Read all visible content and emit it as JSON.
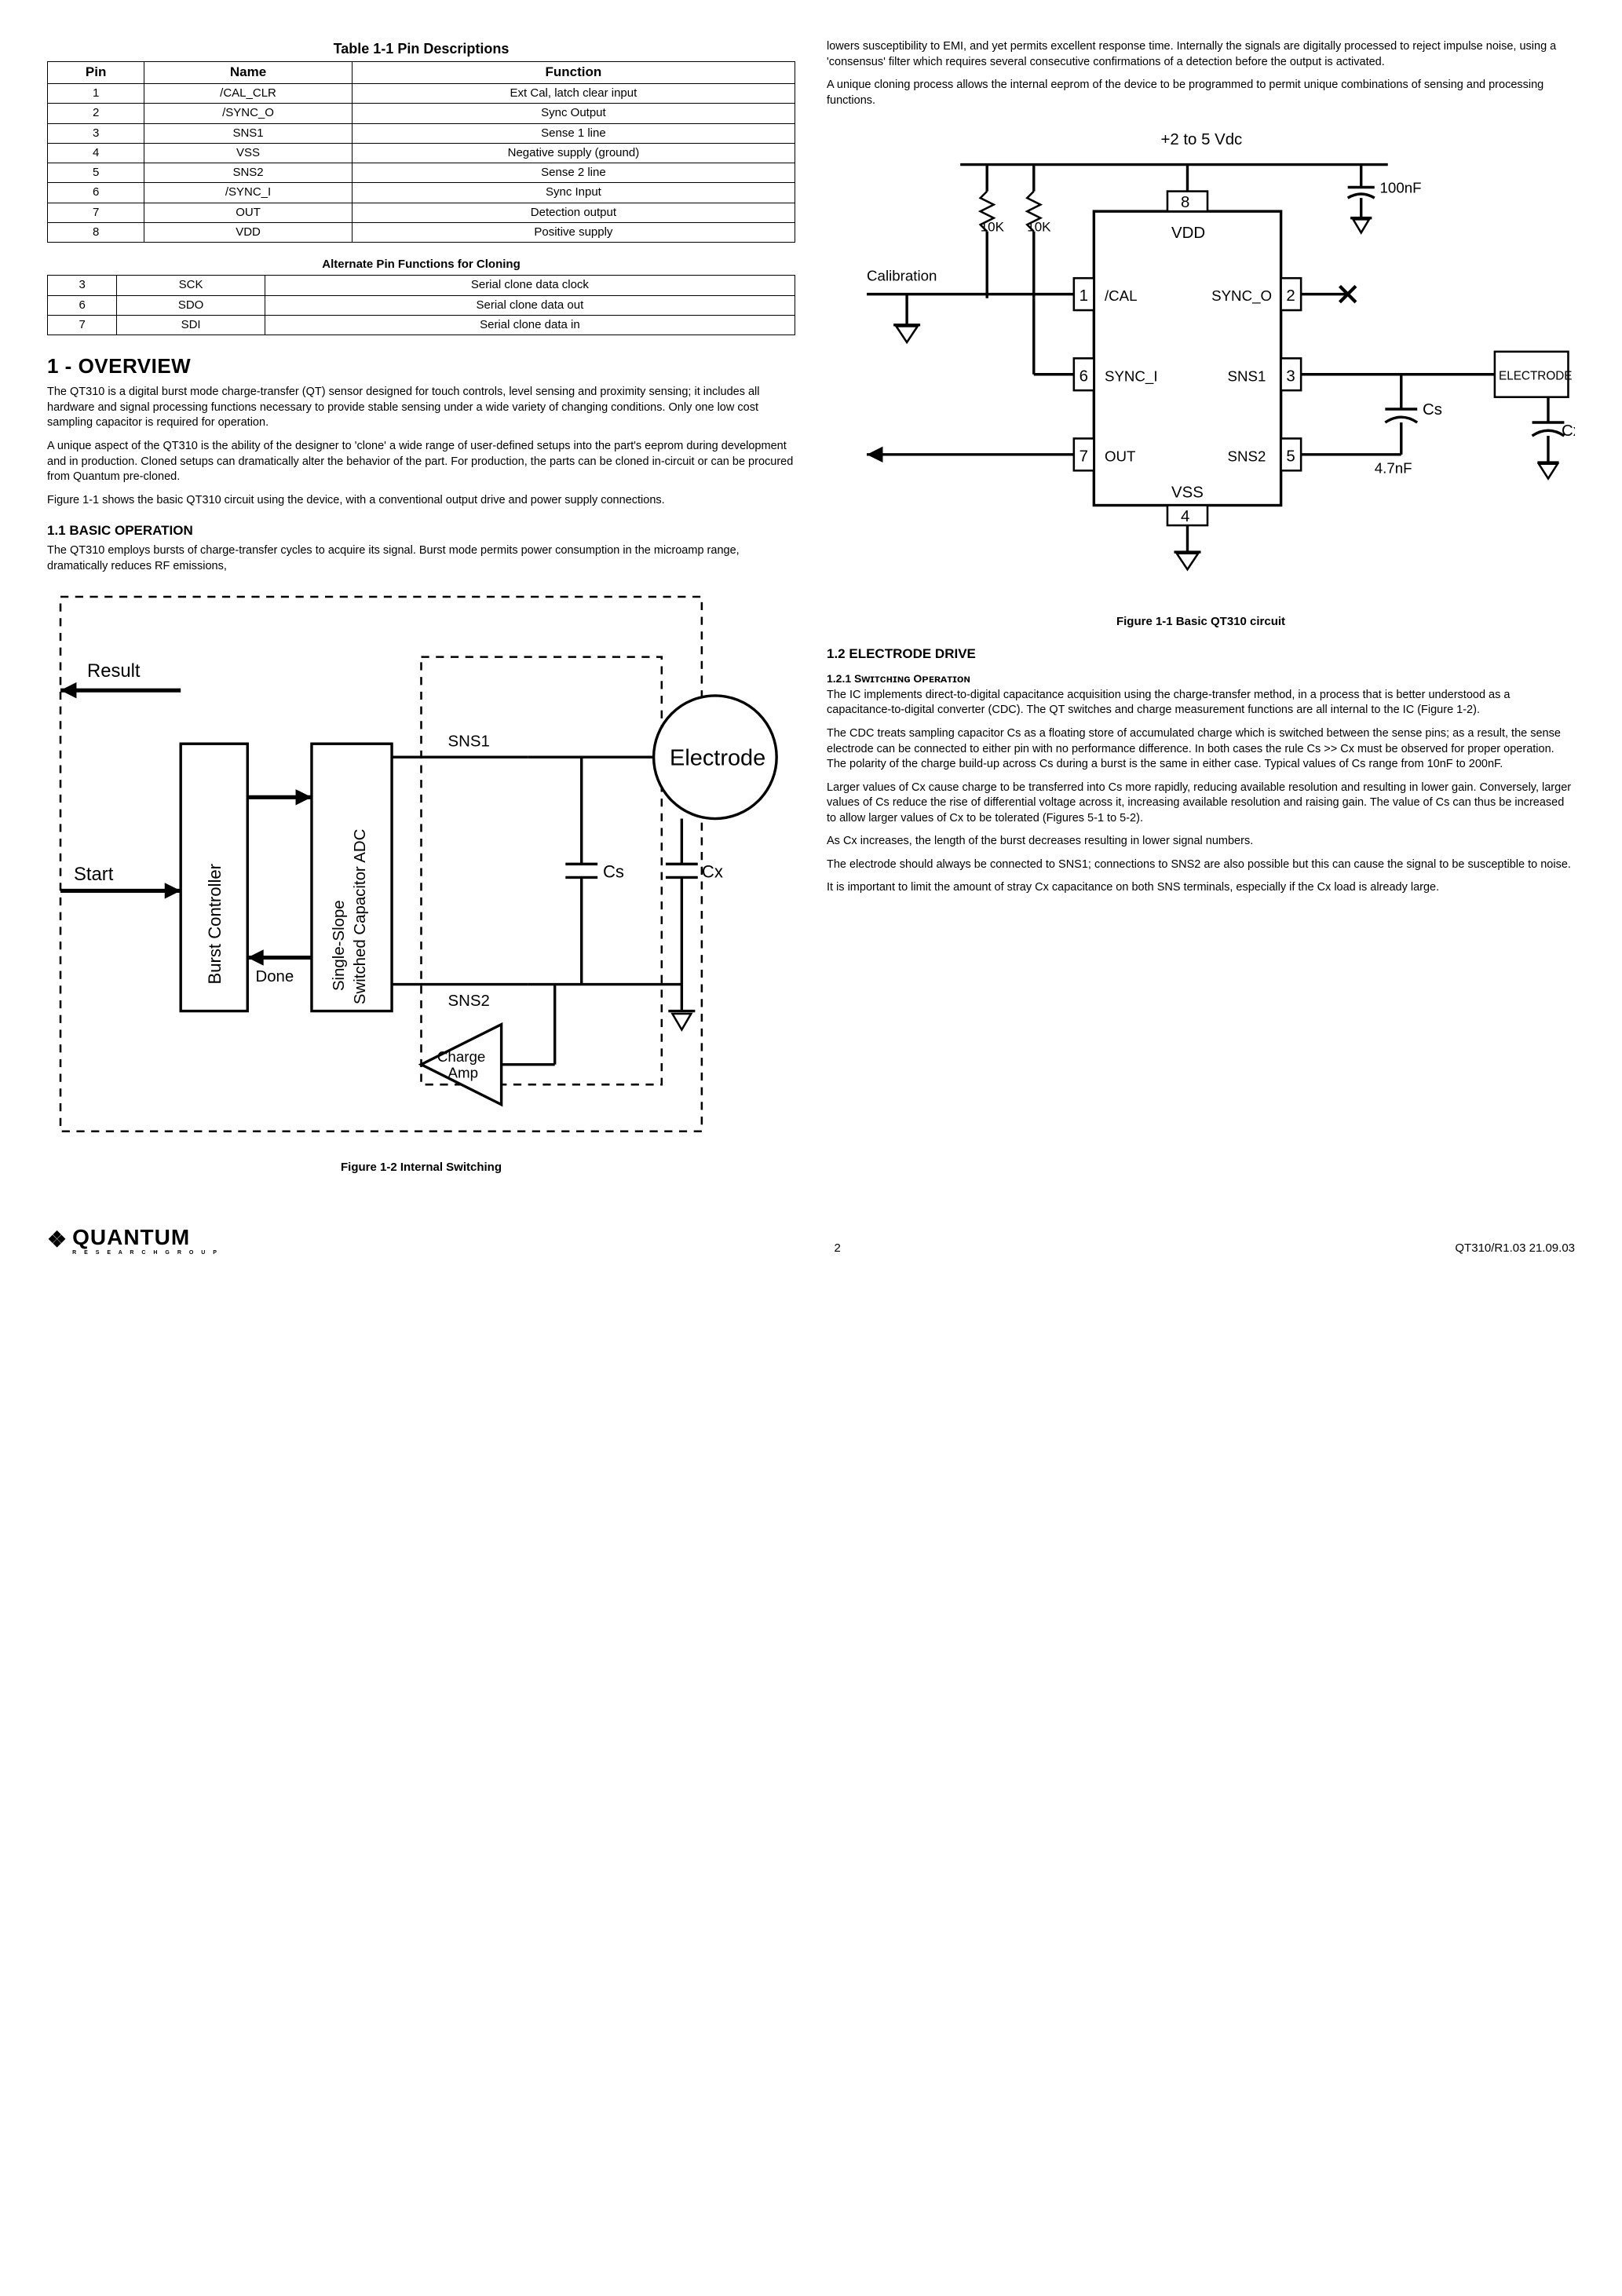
{
  "table1": {
    "title": "Table 1-1  Pin Descriptions",
    "headers": [
      "Pin",
      "Name",
      "Function"
    ],
    "rows": [
      [
        "1",
        "/CAL_CLR",
        "Ext Cal, latch clear input"
      ],
      [
        "2",
        "/SYNC_O",
        "Sync Output"
      ],
      [
        "3",
        "SNS1",
        "Sense 1 line"
      ],
      [
        "4",
        "VSS",
        "Negative supply (ground)"
      ],
      [
        "5",
        "SNS2",
        "Sense 2 line"
      ],
      [
        "6",
        "/SYNC_I",
        "Sync Input"
      ],
      [
        "7",
        "OUT",
        "Detection output"
      ],
      [
        "8",
        "VDD",
        "Positive supply"
      ]
    ],
    "alt_title": "Alternate Pin Functions for Cloning",
    "alt_rows": [
      [
        "3",
        "SCK",
        "Serial clone data clock"
      ],
      [
        "6",
        "SDO",
        "Serial clone data out"
      ],
      [
        "7",
        "SDI",
        "Serial clone data in"
      ]
    ]
  },
  "section1": {
    "heading": "1 - OVERVIEW",
    "p1": "The QT310 is a digital burst mode charge-transfer (QT) sensor designed for touch controls, level sensing and proximity sensing; it includes all hardware and signal processing functions necessary to provide stable sensing under a wide variety of changing conditions. Only one low cost sampling capacitor is required for operation.",
    "p2": "A unique aspect of the QT310 is the ability of the designer to 'clone' a wide range of user-defined setups into the part's eeprom during development and in production. Cloned setups can dramatically alter the behavior of the part. For production, the parts can be cloned in-circuit or can be procured from Quantum pre-cloned.",
    "p3": "Figure 1-1 shows the basic QT310 circuit using the device, with a conventional output drive and power supply connections."
  },
  "section11": {
    "heading": "1.1 BASIC OPERATION",
    "p1": "The QT310 employs bursts of charge-transfer cycles to acquire its signal. Burst mode permits power consumption in the microamp range, dramatically reduces RF emissions,",
    "p2": "lowers susceptibility to EMI, and yet permits excellent response time. Internally the signals are digitally processed to reject impulse noise, using a 'consensus' filter which requires several consecutive confirmations of a detection before the output is activated.",
    "p3": "A unique cloning process allows the internal eeprom of the device to be programmed to permit unique combinations of sensing and processing functions."
  },
  "fig11_caption": "Figure 1-1  Basic QT310 circuit",
  "fig12_caption": "Figure 1-2  Internal Switching",
  "section12": {
    "heading": "1.2 ELECTRODE DRIVE",
    "sub_heading": "1.2.1 Sᴡɪᴛᴄʜɪɴɢ Oᴘᴇʀᴀᴛɪᴏɴ",
    "p1": "The IC implements direct-to-digital capacitance acquisition using the charge-transfer method, in a process that is better understood as a capacitance-to-digital converter (CDC). The QT switches and charge measurement functions are all internal to the IC (Figure 1-2).",
    "p2": "The CDC treats sampling capacitor Cs as a floating store of accumulated charge which is switched between the sense pins; as a result, the sense electrode can be connected to either pin with no performance difference. In both cases the rule Cs >> Cx must be observed for proper operation. The polarity of the charge build-up across Cs during a burst is the same in either case. Typical values of Cs range from 10nF to 200nF.",
    "p3": "Larger values of Cx cause charge to be transferred into Cs more rapidly, reducing available resolution and resulting in lower gain. Conversely, larger values of Cs reduce the rise of differential voltage across it, increasing available resolution and raising gain. The value of Cs can thus be increased to allow larger values of Cx to be tolerated (Figures 5-1 to 5-2).",
    "p4": "As Cx increases, the length of the burst decreases resulting in lower signal numbers.",
    "p5": "The electrode should always be connected to SNS1; connections to SNS2 are also possible but this can cause the signal to be susceptible to noise.",
    "p6": "It is important to limit the amount of stray Cx capacitance on both SNS terminals, especially if the Cx load is already large."
  },
  "footer": {
    "logo": "QUANTUM",
    "logo_tag": "R E S E A R C H   G R O U P",
    "page": "2",
    "doc": "QT310/R1.03  21.09.03"
  },
  "fig11": {
    "vdd_label": "+2 to 5 Vdc",
    "cap100": "100nF",
    "r10k": "10K",
    "calibration": "Calibration",
    "pins": {
      "1": "/CAL",
      "2": "SYNC_O",
      "3": "SNS1",
      "4": "",
      "5": "SNS2",
      "6": "SYNC_I",
      "7": "OUT",
      "8": "VDD",
      "vss": "VSS"
    },
    "electrode": "ELECTRODE",
    "cs": "Cs",
    "cx": "Cx",
    "cs_val": "4.7nF"
  },
  "fig12": {
    "result": "Result",
    "start": "Start",
    "burst": "Burst Controller",
    "adc": "Single-Slope\nSwitched Capacitor ADC",
    "done": "Done",
    "sns1": "SNS1",
    "sns2": "SNS2",
    "charge_amp": "Charge\nAmp",
    "electrode": "Electrode",
    "cs": "Cs",
    "cx": "Cx"
  }
}
